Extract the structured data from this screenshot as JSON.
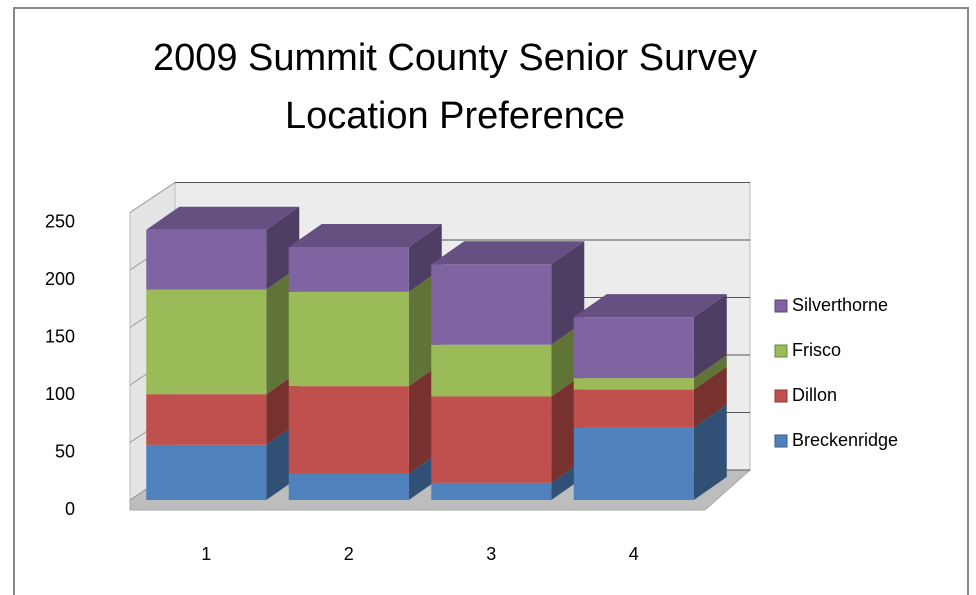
{
  "chart_data": {
    "type": "bar3d-stacked",
    "title": [
      "2009 Summit County Senior Survey",
      "Location Preference"
    ],
    "categories": [
      "1",
      "2",
      "3",
      "4"
    ],
    "series": [
      {
        "name": "Breckenridge",
        "color": "#4f81bd",
        "values": [
          48,
          23,
          15,
          63
        ]
      },
      {
        "name": "Dillon",
        "color": "#c0504d",
        "values": [
          44,
          76,
          75,
          33
        ]
      },
      {
        "name": "Frisco",
        "color": "#9bbb59",
        "values": [
          91,
          82,
          45,
          10
        ]
      },
      {
        "name": "Silverthorne",
        "color": "#8064a2",
        "values": [
          52,
          39,
          70,
          53
        ]
      }
    ],
    "ylim": [
      0,
      250
    ],
    "yticks": [
      0,
      50,
      100,
      150,
      200,
      250
    ],
    "grid": true,
    "legend": "right"
  }
}
